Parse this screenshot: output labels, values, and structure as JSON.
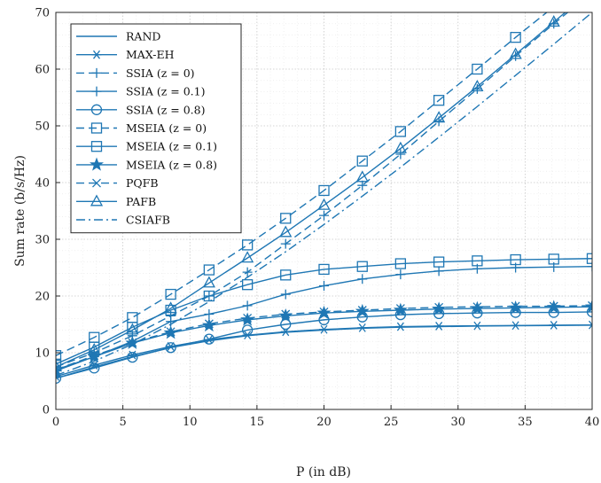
{
  "chart_data": {
    "type": "line",
    "title": "",
    "xlabel": "P (in dB)",
    "ylabel": "Sum rate (b/s/Hz)",
    "xlim": [
      0,
      40
    ],
    "ylim": [
      0,
      70
    ],
    "xticks": [
      0,
      5,
      10,
      15,
      20,
      25,
      30,
      35,
      40
    ],
    "yticks": [
      0,
      10,
      20,
      30,
      40,
      50,
      60,
      70
    ],
    "grid": "major and minor, dotted",
    "legend_position": "top-left",
    "line_color": "#1f77b4",
    "x": [
      0,
      2.86,
      5.71,
      8.57,
      11.43,
      14.29,
      17.14,
      20,
      22.86,
      25.71,
      28.57,
      31.43,
      34.29,
      37.14,
      40
    ],
    "series": [
      {
        "name": "RAND",
        "marker": "none",
        "dash": "solid",
        "values": [
          5.5,
          7.5,
          9.3,
          10.9,
          12.1,
          13.0,
          13.6,
          14.0,
          14.3,
          14.5,
          14.6,
          14.7,
          14.75,
          14.8,
          14.85
        ]
      },
      {
        "name": "MAX-EH",
        "marker": "asterisk",
        "dash": "solid",
        "values": [
          5.8,
          7.8,
          9.6,
          11.1,
          12.3,
          13.1,
          13.7,
          14.1,
          14.4,
          14.6,
          14.7,
          14.75,
          14.8,
          14.85,
          14.9
        ]
      },
      {
        "name": "SSIA (z = 0)",
        "marker": "plus",
        "dash": "dashed",
        "values": [
          7.5,
          10.0,
          13.0,
          16.5,
          20.0,
          24.2,
          29.2,
          34.2,
          39.5,
          45.0,
          50.8,
          56.5,
          62.3,
          68.0,
          73.5
        ]
      },
      {
        "name": "SSIA (z = 0.1)",
        "marker": "plus",
        "dash": "solid",
        "values": [
          7.0,
          9.3,
          12.0,
          15.5,
          16.8,
          18.3,
          20.3,
          21.8,
          23.0,
          23.8,
          24.4,
          24.8,
          25.0,
          25.1,
          25.2
        ]
      },
      {
        "name": "SSIA (z = 0.8)",
        "marker": "circle",
        "dash": "solid",
        "values": [
          5.5,
          7.3,
          9.2,
          10.9,
          12.4,
          14.0,
          15.0,
          15.8,
          16.3,
          16.7,
          16.9,
          17.0,
          17.1,
          17.1,
          17.2
        ]
      },
      {
        "name": "MSEIA (z = 0)",
        "marker": "square",
        "dash": "dashed",
        "values": [
          9.5,
          12.7,
          16.2,
          20.3,
          24.6,
          29.0,
          33.7,
          38.6,
          43.8,
          49.0,
          54.5,
          60.0,
          65.6,
          71.0,
          76.5
        ]
      },
      {
        "name": "MSEIA (z = 0.1)",
        "marker": "square",
        "dash": "solid",
        "values": [
          8.0,
          11.0,
          14.5,
          17.5,
          20.0,
          22.0,
          23.7,
          24.7,
          25.2,
          25.7,
          26.0,
          26.2,
          26.4,
          26.5,
          26.6
        ]
      },
      {
        "name": "MSEIA (z = 0.8)",
        "marker": "star",
        "dash": "solid",
        "values": [
          6.8,
          9.3,
          11.7,
          13.5,
          14.8,
          15.8,
          16.5,
          17.0,
          17.3,
          17.5,
          17.7,
          17.8,
          17.9,
          18.0,
          18.1
        ]
      },
      {
        "name": "PQFB",
        "marker": "x",
        "dash": "dashed",
        "values": [
          7.0,
          9.5,
          11.8,
          13.7,
          15.1,
          16.1,
          16.8,
          17.2,
          17.5,
          17.8,
          18.0,
          18.1,
          18.2,
          18.2,
          18.3
        ]
      },
      {
        "name": "PAFB",
        "marker": "triangle",
        "dash": "solid",
        "values": [
          7.5,
          10.5,
          14.0,
          17.8,
          22.3,
          26.7,
          31.2,
          36.0,
          40.9,
          46.0,
          51.4,
          56.9,
          62.6,
          68.3,
          74.0
        ]
      },
      {
        "name": "CSIAFB",
        "marker": "none",
        "dash": "dashdot",
        "values": [
          6.0,
          8.5,
          11.5,
          15.0,
          19.0,
          23.3,
          27.8,
          32.6,
          37.6,
          42.7,
          48.0,
          53.4,
          58.9,
          64.4,
          70.0
        ]
      }
    ]
  }
}
